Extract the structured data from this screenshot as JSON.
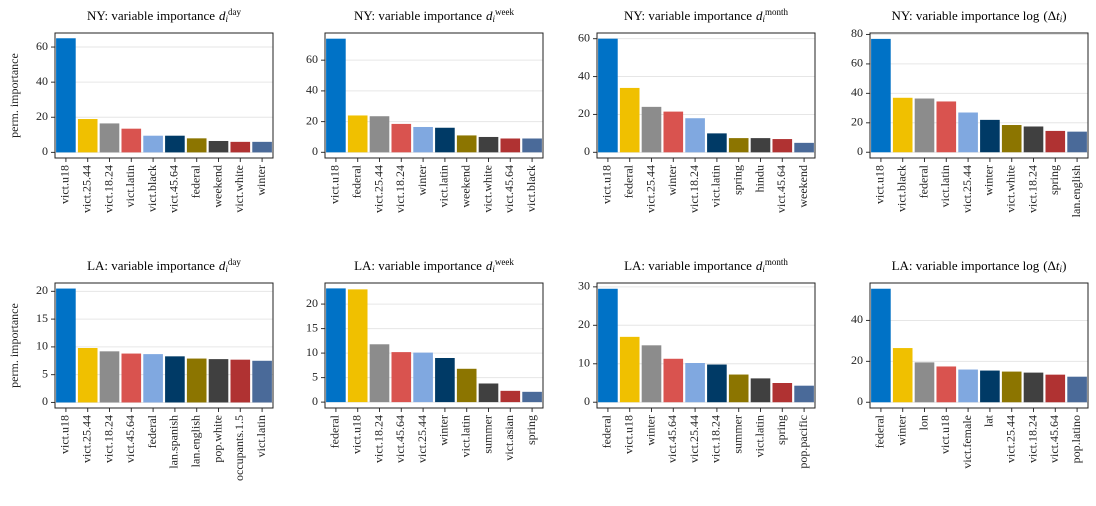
{
  "chart_data": [
    {
      "type": "bar",
      "title_parts": [
        {
          "text": "NY: variable importance"
        },
        {
          "text": "d",
          "italic": true
        },
        {
          "text": "i",
          "italic": true,
          "shift": "sub"
        },
        {
          "text": "day",
          "shift": "sup"
        }
      ],
      "ylabel": "perm. importance",
      "categories": [
        "vict.u18",
        "vict.25.44",
        "vict.18.24",
        "vict.latin",
        "vict.black",
        "vict.45.64",
        "federal",
        "weekend",
        "vict.white",
        "winter"
      ],
      "values": [
        65,
        19,
        16.5,
        13.5,
        9.5,
        9.5,
        8,
        6.5,
        6,
        6
      ],
      "colors": [
        "#0072c6",
        "#f0c000",
        "#8c8c8c",
        "#d9534f",
        "#80a8e0",
        "#003a66",
        "#8c7500",
        "#404040",
        "#b03232",
        "#4a6a99"
      ],
      "ylim": [
        -3.2,
        68
      ],
      "yticks": [
        0,
        20,
        40,
        60
      ],
      "grid": true
    },
    {
      "type": "bar",
      "title_parts": [
        {
          "text": "NY: variable importance"
        },
        {
          "text": "d",
          "italic": true
        },
        {
          "text": "i",
          "italic": true,
          "shift": "sub"
        },
        {
          "text": "week",
          "shift": "sup"
        }
      ],
      "categories": [
        "vict.u18",
        "federal",
        "vict.25.44",
        "vict.18.24",
        "winter",
        "vict.latin",
        "weekend",
        "vict.white",
        "vict.45.64",
        "vict.black"
      ],
      "values": [
        74,
        24,
        23.5,
        18.5,
        16.5,
        16,
        11,
        10,
        9,
        9
      ],
      "colors": [
        "#0072c6",
        "#f0c000",
        "#8c8c8c",
        "#d9534f",
        "#80a8e0",
        "#003a66",
        "#8c7500",
        "#404040",
        "#b03232",
        "#4a6a99"
      ],
      "ylim": [
        -3.7,
        77.7
      ],
      "yticks": [
        0,
        20,
        40,
        60
      ],
      "grid": true
    },
    {
      "type": "bar",
      "title_parts": [
        {
          "text": "NY: variable importance"
        },
        {
          "text": "d",
          "italic": true
        },
        {
          "text": "i",
          "italic": true,
          "shift": "sub"
        },
        {
          "text": "month",
          "shift": "sup"
        }
      ],
      "categories": [
        "vict.u18",
        "federal",
        "vict.25.44",
        "winter",
        "vict.18.24",
        "vict.latin",
        "spring",
        "hindu",
        "vict.45.64",
        "weekend"
      ],
      "values": [
        60,
        34,
        24,
        21.5,
        18,
        10,
        7.5,
        7.5,
        7,
        5
      ],
      "colors": [
        "#0072c6",
        "#f0c000",
        "#8c8c8c",
        "#d9534f",
        "#80a8e0",
        "#003a66",
        "#8c7500",
        "#404040",
        "#b03232",
        "#4a6a99"
      ],
      "ylim": [
        -3,
        63
      ],
      "yticks": [
        0,
        20,
        40,
        60
      ],
      "grid": true
    },
    {
      "type": "bar",
      "title_parts": [
        {
          "text": "NY: variable importance log"
        },
        {
          "text": "(Δ"
        },
        {
          "text": "t",
          "italic": true
        },
        {
          "text": "i",
          "italic": true,
          "shift": "sub"
        },
        {
          "text": ")"
        }
      ],
      "categories": [
        "vict.u18",
        "vict.black",
        "federal",
        "vict.latin",
        "vict.25.44",
        "winter",
        "vict.white",
        "vict.18.24",
        "spring",
        "lan.english"
      ],
      "values": [
        77,
        37,
        36.5,
        34.5,
        27,
        22,
        18.5,
        17.5,
        14.5,
        14
      ],
      "colors": [
        "#0072c6",
        "#f0c000",
        "#8c8c8c",
        "#d9534f",
        "#80a8e0",
        "#003a66",
        "#8c7500",
        "#404040",
        "#b03232",
        "#4a6a99"
      ],
      "ylim": [
        -3.9,
        81
      ],
      "yticks": [
        0,
        20,
        40,
        60,
        80
      ],
      "grid": true
    },
    {
      "type": "bar",
      "title_parts": [
        {
          "text": "LA: variable importance"
        },
        {
          "text": "d",
          "italic": true
        },
        {
          "text": "i",
          "italic": true,
          "shift": "sub"
        },
        {
          "text": "day",
          "shift": "sup"
        }
      ],
      "ylabel": "perm. importance",
      "categories": [
        "vict.u18",
        "vict.25.44",
        "vict.18.24",
        "vict.45.64",
        "federal",
        "lan.spanish",
        "lan.english",
        "pop.white",
        "occupants.1.5",
        "vict.latin"
      ],
      "values": [
        20.5,
        9.8,
        9.2,
        8.8,
        8.7,
        8.3,
        7.9,
        7.8,
        7.7,
        7.5
      ],
      "colors": [
        "#0072c6",
        "#f0c000",
        "#8c8c8c",
        "#d9534f",
        "#80a8e0",
        "#003a66",
        "#8c7500",
        "#404040",
        "#b03232",
        "#4a6a99"
      ],
      "ylim": [
        -1,
        21.5
      ],
      "yticks": [
        0,
        5,
        10,
        15,
        20
      ],
      "grid": true
    },
    {
      "type": "bar",
      "title_parts": [
        {
          "text": "LA: variable importance"
        },
        {
          "text": "d",
          "italic": true
        },
        {
          "text": "i",
          "italic": true,
          "shift": "sub"
        },
        {
          "text": "week",
          "shift": "sup"
        }
      ],
      "categories": [
        "federal",
        "vict.u18",
        "vict.18.24",
        "vict.45.64",
        "vict.25.44",
        "winter",
        "vict.latin",
        "summer",
        "vict.asian",
        "spring"
      ],
      "values": [
        23.2,
        23,
        11.8,
        10.2,
        10.1,
        9,
        6.8,
        3.8,
        2.3,
        2.1
      ],
      "colors": [
        "#0072c6",
        "#f0c000",
        "#8c8c8c",
        "#d9534f",
        "#80a8e0",
        "#003a66",
        "#8c7500",
        "#404040",
        "#b03232",
        "#4a6a99"
      ],
      "ylim": [
        -1.2,
        24.3
      ],
      "yticks": [
        0,
        5,
        10,
        15,
        20
      ],
      "grid": true
    },
    {
      "type": "bar",
      "title_parts": [
        {
          "text": "LA: variable importance"
        },
        {
          "text": "d",
          "italic": true
        },
        {
          "text": "i",
          "italic": true,
          "shift": "sub"
        },
        {
          "text": "month",
          "shift": "sup"
        }
      ],
      "categories": [
        "federal",
        "vict.u18",
        "winter",
        "vict.45.64",
        "vict.25.44",
        "vict.18.24",
        "summer",
        "vict.latin",
        "spring",
        "pop.pacific"
      ],
      "values": [
        29.5,
        17,
        14.8,
        11.3,
        10.2,
        9.8,
        7.2,
        6.2,
        5,
        4.3
      ],
      "colors": [
        "#0072c6",
        "#f0c000",
        "#8c8c8c",
        "#d9534f",
        "#80a8e0",
        "#003a66",
        "#8c7500",
        "#404040",
        "#b03232",
        "#4a6a99"
      ],
      "ylim": [
        -1.5,
        31
      ],
      "yticks": [
        0,
        10,
        20,
        30
      ],
      "grid": true
    },
    {
      "type": "bar",
      "title_parts": [
        {
          "text": "LA: variable importance log"
        },
        {
          "text": "(Δ"
        },
        {
          "text": "t",
          "italic": true
        },
        {
          "text": "i",
          "italic": true,
          "shift": "sub"
        },
        {
          "text": ")"
        }
      ],
      "categories": [
        "federal",
        "winter",
        "lon",
        "vict.u18",
        "vict.female",
        "lat",
        "vict.25.44",
        "vict.18.24",
        "vict.45.64",
        "pop.latino"
      ],
      "values": [
        55.5,
        26.5,
        19.5,
        17.5,
        16,
        15.5,
        15,
        14.5,
        13.5,
        12.5
      ],
      "colors": [
        "#0072c6",
        "#f0c000",
        "#8c8c8c",
        "#d9534f",
        "#80a8e0",
        "#003a66",
        "#8c7500",
        "#404040",
        "#b03232",
        "#4a6a99"
      ],
      "ylim": [
        -2.8,
        58.3
      ],
      "yticks": [
        0,
        20,
        40
      ],
      "grid": true
    }
  ]
}
